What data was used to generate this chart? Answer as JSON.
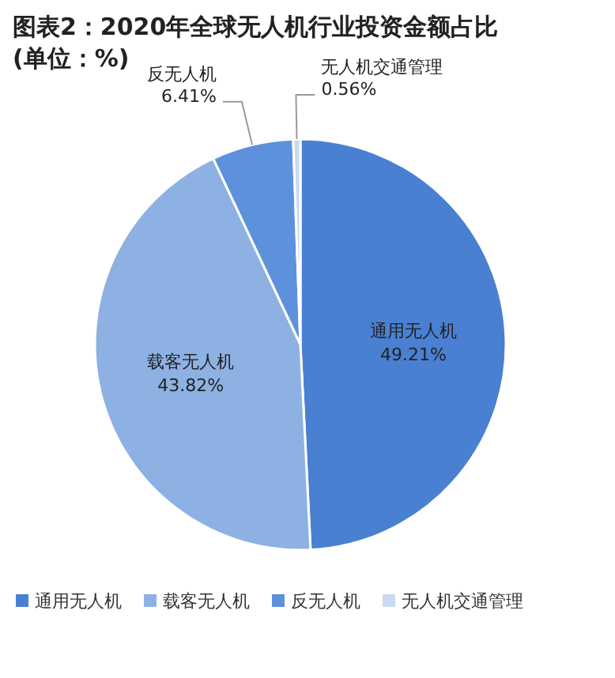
{
  "chart_data": {
    "type": "pie",
    "title": "图表2：2020年全球无人机行业投资金额占比(单位：%)",
    "categories": [
      "通用无人机",
      "载客无人机",
      "反无人机",
      "无人机交通管理"
    ],
    "values": [
      49.21,
      43.82,
      6.41,
      0.56
    ],
    "value_labels": [
      "49.21%",
      "43.82%",
      "6.41%",
      "0.56%"
    ],
    "colors": [
      "#4a80d2",
      "#8db1e3",
      "#5d91dc",
      "#c9daf2"
    ],
    "legend": "bottom"
  }
}
